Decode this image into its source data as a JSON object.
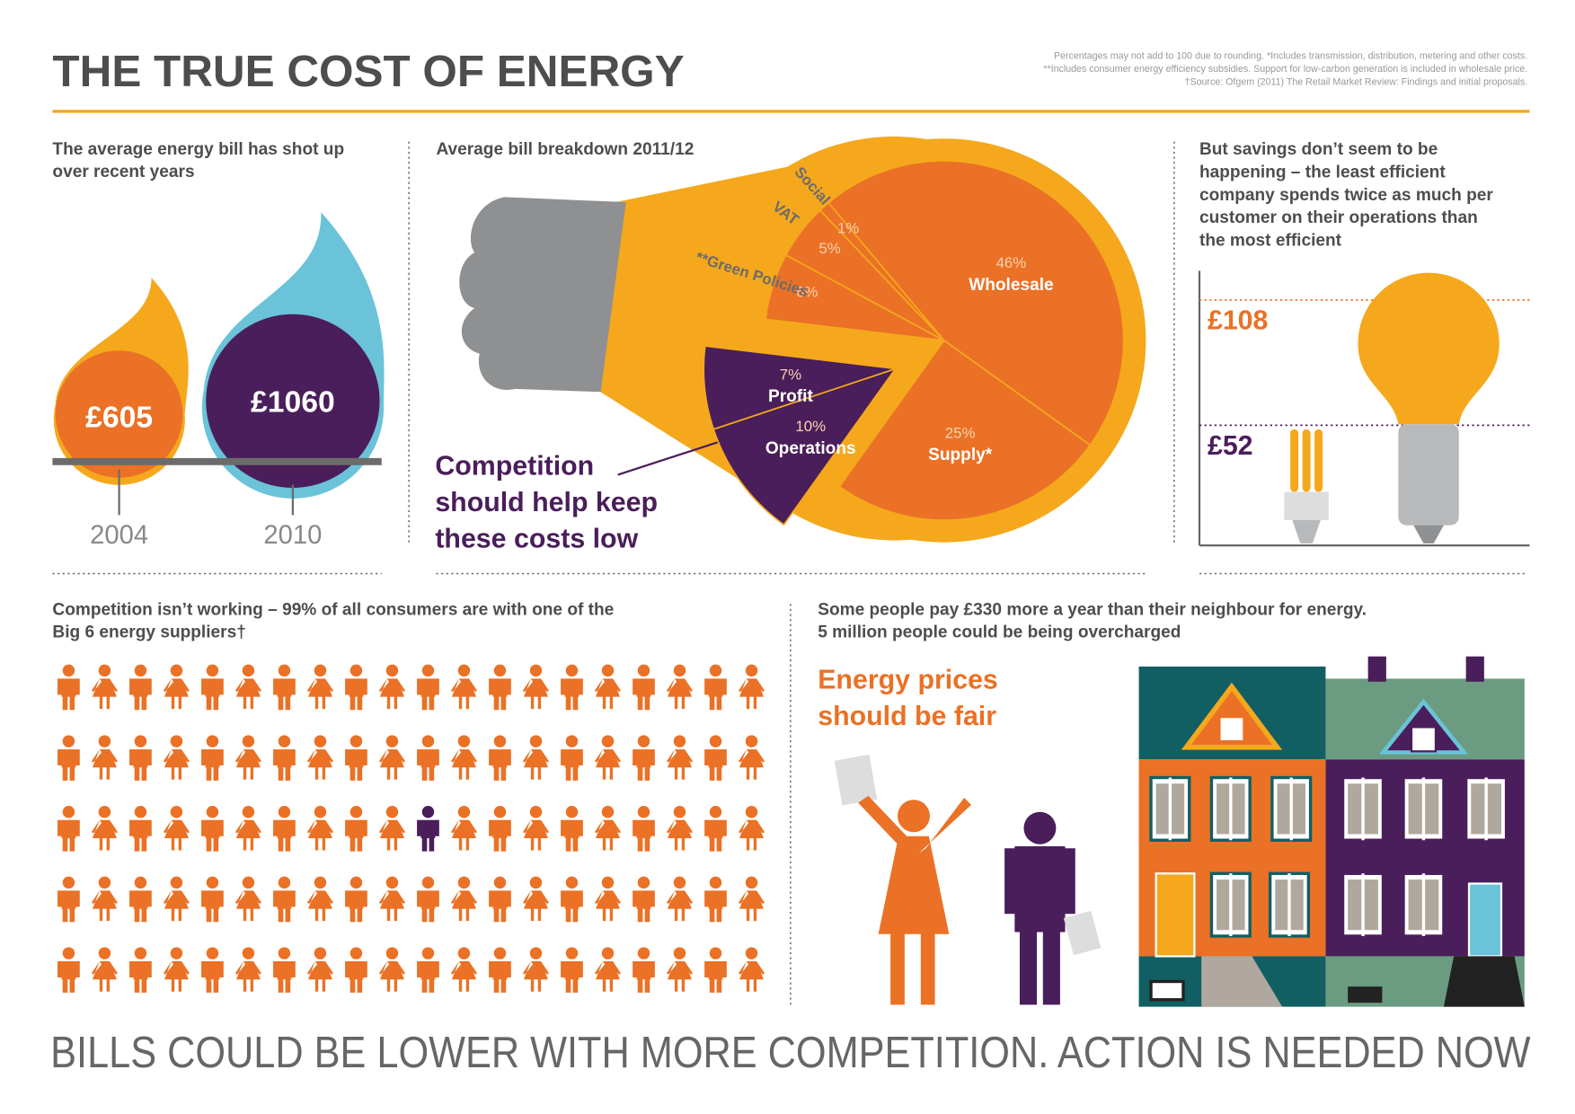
{
  "header": {
    "title": "THE TRUE COST OF ENERGY",
    "notes": [
      "Percentages may not add to 100 due to rounding. *Includes transmission, distribution, metering and other costs.",
      "**Includes consumer energy efficiency subsidies. Support for low-carbon generation is included in wholesale price.",
      "†Source: Ofgem (2011) The Retail Market Review: Findings and initial proposals."
    ]
  },
  "bills": {
    "caption": [
      "The average energy bill has shot up",
      "over recent years"
    ],
    "items": [
      {
        "amount": "£605",
        "year": "2004"
      },
      {
        "amount": "£1060",
        "year": "2010"
      }
    ]
  },
  "chart_data": {
    "type": "pie",
    "title": "Average bill breakdown 2011/12",
    "categories": [
      "Wholesale",
      "Supply*",
      "Operations",
      "Profit",
      "**Green Policies",
      "VAT",
      "Social"
    ],
    "values": [
      46,
      25,
      10,
      7,
      6,
      5,
      1
    ],
    "value_labels": [
      "46%",
      "25%",
      "10%",
      "7%",
      "6%",
      "5%",
      "1%"
    ],
    "colors": [
      "#ea7125",
      "#ea7125",
      "#4a1e5a",
      "#4a1e5a",
      "#ea7125",
      "#ea7125",
      "#ea7125"
    ],
    "annotation": [
      "Competition",
      "should help keep",
      "these costs low"
    ]
  },
  "savings": {
    "caption": [
      "But savings don’t seem to be",
      "happening – the least efficient",
      "company spends twice as much per",
      "customer on their operations than",
      "the most efficient"
    ],
    "high": "£108",
    "low": "£52"
  },
  "suppliers": {
    "caption": [
      "Competition isn’t working – 99% of all consumers are with one of the",
      "Big 6 energy suppliers†"
    ]
  },
  "fairness": {
    "caption": [
      "Some people pay £330 more a year than their neighbour for energy.",
      "5 million people could be being overcharged"
    ],
    "slogan": [
      "Energy prices",
      "should be fair"
    ]
  },
  "footer": "BILLS COULD BE LOWER WITH MORE COMPETITION. ACTION IS NEEDED NOW"
}
